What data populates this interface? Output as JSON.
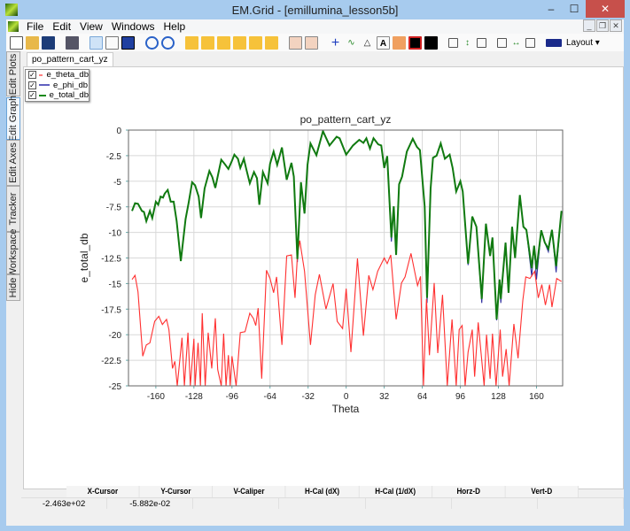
{
  "window": {
    "title": "EM.Grid - [emillumina_lesson5b]",
    "minimize": "–",
    "maximize": "☐",
    "close": "✕"
  },
  "menu": [
    "File",
    "Edit",
    "View",
    "Windows",
    "Help"
  ],
  "toolbar": {
    "icons": [
      "new-file",
      "open-folder",
      "save",
      "print",
      "pointer",
      "pan-hand",
      "zoom-box",
      "zoom-in",
      "zoom-out",
      "stretch-horizontal",
      "fit-horizontal",
      "compress-horizontal",
      "stretch-vertical",
      "fit-vertical",
      "compress-vertical",
      "vertical-split",
      "horizontal-split",
      "crosshair",
      "tracker-cursor",
      "triangle-marker",
      "text-annotation",
      "plot-properties",
      "red-plot",
      "black-plot",
      "checkbox-left",
      "v-caliper",
      "checkbox-right",
      "checkbox-left-2",
      "h-caliper",
      "checkbox-right-2",
      "layout"
    ],
    "layout_label": "Layout ▾"
  },
  "side_tabs": [
    {
      "label": "Edit Plots"
    },
    {
      "label": "Edit Graph",
      "selected": true
    },
    {
      "label": "Edit Axes"
    },
    {
      "label": "Tracker"
    },
    {
      "label": "Workspace"
    },
    {
      "label": "Hide"
    }
  ],
  "doc_tab": "po_pattern_cart_yz",
  "legend": [
    {
      "label": "e_theta_db",
      "color": "#ff8080",
      "checked": true
    },
    {
      "label": "e_phi_db",
      "color": "#6060c0",
      "checked": true
    },
    {
      "label": "e_total_db",
      "color": "#1a8a1a",
      "checked": true
    }
  ],
  "status": {
    "headers": [
      "X-Cursor",
      "Y-Cursor",
      "V-Caliper",
      "H-Cal (dX)",
      "H-Cal (1/dX)",
      "Horz-D",
      "Vert-D"
    ],
    "values": [
      "-2.463e+02",
      "-5.882e-02",
      "",
      "",
      "",
      "",
      ""
    ]
  },
  "chart_data": {
    "type": "line",
    "title": "po_pattern_cart_yz",
    "xlabel": "Theta",
    "ylabel": "e_total_db",
    "xlim": [
      -183,
      182
    ],
    "ylim": [
      -25,
      0
    ],
    "xticks": [
      -160,
      -128,
      -96,
      -64,
      -32,
      0,
      32,
      64,
      96,
      128,
      160
    ],
    "yticks": [
      0,
      -2.5,
      -5,
      -7.5,
      -10,
      -12.5,
      -15,
      -17.5,
      -20,
      -22.5,
      -25
    ],
    "grid": true,
    "series": [
      {
        "name": "e_theta_db",
        "color": "#ff3030",
        "points": [
          [
            -180,
            -14.6
          ],
          [
            -177.5,
            -14.2
          ],
          [
            -175,
            -15.8
          ],
          [
            -171,
            -22.1
          ],
          [
            -168,
            -21
          ],
          [
            -165,
            -20.8
          ],
          [
            -161,
            -18.7
          ],
          [
            -157.5,
            -18.2
          ],
          [
            -154.5,
            -19
          ],
          [
            -151,
            -18.5
          ],
          [
            -149,
            -19.5
          ],
          [
            -146,
            -23.3
          ],
          [
            -144,
            -22.6
          ],
          [
            -142,
            -25
          ],
          [
            -138,
            -20.3
          ],
          [
            -136,
            -25
          ],
          [
            -133,
            -19.8
          ],
          [
            -131,
            -25
          ],
          [
            -128,
            -20.4
          ],
          [
            -127,
            -25
          ],
          [
            -124.5,
            -20.8
          ],
          [
            -122.5,
            -25
          ],
          [
            -121,
            -17.9
          ],
          [
            -118.5,
            -25
          ],
          [
            -116,
            -19.8
          ],
          [
            -113,
            -23.3
          ],
          [
            -110,
            -18.4
          ],
          [
            -108,
            -23.4
          ],
          [
            -105,
            -25
          ],
          [
            -103,
            -19.9
          ],
          [
            -101,
            -25
          ],
          [
            -99,
            -22
          ],
          [
            -97.5,
            -25
          ],
          [
            -96,
            -22.1
          ],
          [
            -92.5,
            -25
          ],
          [
            -89,
            -19.8
          ],
          [
            -85,
            -19.7
          ],
          [
            -81,
            -17.9
          ],
          [
            -78,
            -18.4
          ],
          [
            -76,
            -19.1
          ],
          [
            -74,
            -17.4
          ],
          [
            -71,
            -24.3
          ],
          [
            -67,
            -13.7
          ],
          [
            -64,
            -14.5
          ],
          [
            -61,
            -15.9
          ],
          [
            -58.5,
            -14.35
          ],
          [
            -54,
            -21
          ],
          [
            -50,
            -12.3
          ],
          [
            -46,
            -12.2
          ],
          [
            -43,
            -16.4
          ],
          [
            -41,
            -12.3
          ],
          [
            -39,
            -10.8
          ],
          [
            -35,
            -13.8
          ],
          [
            -30,
            -21
          ],
          [
            -26,
            -16.1
          ],
          [
            -22.5,
            -14.1
          ],
          [
            -17,
            -17.5
          ],
          [
            -11,
            -15
          ],
          [
            -7.5,
            -18.7
          ],
          [
            -3,
            -19.4
          ],
          [
            0,
            -15.5
          ],
          [
            4,
            -21.7
          ],
          [
            9.5,
            -12.55
          ],
          [
            14.5,
            -20.1
          ],
          [
            19,
            -14.2
          ],
          [
            22.5,
            -15.6
          ],
          [
            26.5,
            -13.8
          ],
          [
            32,
            -12.5
          ],
          [
            34.5,
            -13.05
          ],
          [
            37.5,
            -12.2
          ],
          [
            42,
            -18.5
          ],
          [
            46.5,
            -14.95
          ],
          [
            49.5,
            -14.35
          ],
          [
            54.5,
            -12.05
          ],
          [
            60,
            -15.2
          ],
          [
            62.5,
            -14.3
          ],
          [
            65,
            -25
          ],
          [
            67.5,
            -16.5
          ],
          [
            70,
            -22
          ],
          [
            74,
            -14.95
          ],
          [
            77,
            -21.8
          ],
          [
            81,
            -16.1
          ],
          [
            85,
            -25
          ],
          [
            89,
            -18.5
          ],
          [
            92.5,
            -25
          ],
          [
            95,
            -19.5
          ],
          [
            97.5,
            -19.1
          ],
          [
            100,
            -25
          ],
          [
            102.5,
            -21.7
          ],
          [
            106,
            -19.5
          ],
          [
            108,
            -24.1
          ],
          [
            111,
            -18.8
          ],
          [
            116,
            -25
          ],
          [
            118,
            -20
          ],
          [
            121,
            -24.3
          ],
          [
            123,
            -19.9
          ],
          [
            126,
            -25
          ],
          [
            129.5,
            -19.5
          ],
          [
            131.5,
            -24.1
          ],
          [
            134.5,
            -21.4
          ],
          [
            137,
            -25
          ],
          [
            141,
            -18.95
          ],
          [
            144.5,
            -22.3
          ],
          [
            148.5,
            -16.65
          ],
          [
            151,
            -14.35
          ],
          [
            154.5,
            -14.5
          ],
          [
            158.5,
            -13.8
          ],
          [
            161.5,
            -16.4
          ],
          [
            164.5,
            -15.1
          ],
          [
            167.5,
            -17.1
          ],
          [
            171,
            -15.1
          ],
          [
            173,
            -17.3
          ],
          [
            177,
            -14.5
          ],
          [
            181,
            -14.8
          ]
        ]
      },
      {
        "name": "e_phi_db",
        "color": "#3030a0",
        "points": [
          [
            -180,
            -7.9
          ],
          [
            -41,
            -12.9
          ],
          [
            38,
            -10.9
          ],
          [
            68,
            -16.9
          ],
          [
            102.5,
            -13.2
          ],
          [
            114,
            -16.9
          ],
          [
            126.5,
            -18.6
          ],
          [
            130,
            -16.9
          ],
          [
            156,
            -14.3
          ],
          [
            160,
            -14.6
          ],
          [
            170,
            -11.9
          ],
          [
            176.5,
            -13.9
          ],
          [
            181,
            -7.9
          ]
        ]
      },
      {
        "name": "e_total_db",
        "color": "#107a10",
        "points": [
          [
            -180,
            -7.9
          ],
          [
            -177.5,
            -7.15
          ],
          [
            -175,
            -7.2
          ],
          [
            -171.7,
            -7.9
          ],
          [
            -170,
            -8
          ],
          [
            -168,
            -8.9
          ],
          [
            -165,
            -7.9
          ],
          [
            -163,
            -8.6
          ],
          [
            -160,
            -7
          ],
          [
            -158,
            -7.3
          ],
          [
            -156,
            -6.5
          ],
          [
            -154,
            -6.6
          ],
          [
            -152.5,
            -6.2
          ],
          [
            -150,
            -5.85
          ],
          [
            -147.5,
            -7
          ],
          [
            -145,
            -7
          ],
          [
            -142.5,
            -8.9
          ],
          [
            -139,
            -12.8
          ],
          [
            -135,
            -8.7
          ],
          [
            -132.5,
            -7.15
          ],
          [
            -129.5,
            -5.1
          ],
          [
            -127,
            -5.4
          ],
          [
            -124,
            -6.5
          ],
          [
            -122,
            -8.6
          ],
          [
            -119,
            -5.7
          ],
          [
            -115,
            -4
          ],
          [
            -112.5,
            -4.6
          ],
          [
            -110,
            -5.65
          ],
          [
            -107.5,
            -4.25
          ],
          [
            -105,
            -2.9
          ],
          [
            -102.5,
            -3.25
          ],
          [
            -99,
            -3.8
          ],
          [
            -96,
            -3
          ],
          [
            -94,
            -2.4
          ],
          [
            -91,
            -2.8
          ],
          [
            -89,
            -3.7
          ],
          [
            -86,
            -2.8
          ],
          [
            -84,
            -3.8
          ],
          [
            -81,
            -5.2
          ],
          [
            -77.5,
            -4.1
          ],
          [
            -75,
            -4.7
          ],
          [
            -73,
            -7.3
          ],
          [
            -70,
            -4.1
          ],
          [
            -66,
            -5.2
          ],
          [
            -64,
            -3.3
          ],
          [
            -61,
            -2.1
          ],
          [
            -58,
            -3.4
          ],
          [
            -54,
            -1.7
          ],
          [
            -50,
            -4.85
          ],
          [
            -46,
            -3.2
          ],
          [
            -44,
            -4.55
          ],
          [
            -41,
            -12.6
          ],
          [
            -38,
            -5.1
          ],
          [
            -35,
            -8.15
          ],
          [
            -32.5,
            -3.4
          ],
          [
            -30,
            -1.3
          ],
          [
            -25,
            -2.45
          ],
          [
            -19.5,
            -0.1
          ],
          [
            -14,
            -1.5
          ],
          [
            -8,
            -0.65
          ],
          [
            -5.5,
            -0.8
          ],
          [
            0,
            -2.4
          ],
          [
            5.75,
            -1.5
          ],
          [
            11,
            -0.95
          ],
          [
            14.5,
            -1.25
          ],
          [
            17,
            -0.8
          ],
          [
            20,
            -1.8
          ],
          [
            23,
            -0.8
          ],
          [
            27,
            -1.4
          ],
          [
            29.5,
            -1.5
          ],
          [
            32,
            -3.7
          ],
          [
            34.5,
            -2.55
          ],
          [
            38,
            -10.5
          ],
          [
            40,
            -7.45
          ],
          [
            42,
            -12.2
          ],
          [
            44.5,
            -5.3
          ],
          [
            47,
            -4.55
          ],
          [
            51,
            -2.1
          ],
          [
            56,
            -0.85
          ],
          [
            59.5,
            -1.65
          ],
          [
            62,
            -1.95
          ],
          [
            66,
            -7.45
          ],
          [
            68,
            -16.4
          ],
          [
            71,
            -5.7
          ],
          [
            73,
            -2.7
          ],
          [
            76,
            -2.5
          ],
          [
            79.5,
            -1.3
          ],
          [
            83,
            -2.8
          ],
          [
            87,
            -2.4
          ],
          [
            89.5,
            -3.7
          ],
          [
            92.5,
            -6
          ],
          [
            96,
            -5
          ],
          [
            98,
            -6
          ],
          [
            102.5,
            -13.05
          ],
          [
            106,
            -8.45
          ],
          [
            109.5,
            -9.45
          ],
          [
            114,
            -16.5
          ],
          [
            117.5,
            -9.15
          ],
          [
            121,
            -12.3
          ],
          [
            123,
            -10.5
          ],
          [
            126.5,
            -18.5
          ],
          [
            129,
            -14.6
          ],
          [
            130,
            -16.5
          ],
          [
            134,
            -11
          ],
          [
            136.5,
            -15.9
          ],
          [
            139.5,
            -9.45
          ],
          [
            142,
            -12.5
          ],
          [
            146,
            -6.35
          ],
          [
            149,
            -9.45
          ],
          [
            151.5,
            -9.75
          ],
          [
            156,
            -13.5
          ],
          [
            158,
            -11.3
          ],
          [
            160,
            -13.6
          ],
          [
            164,
            -9.8
          ],
          [
            167,
            -11
          ],
          [
            170,
            -11.6
          ],
          [
            173,
            -9.75
          ],
          [
            176.5,
            -13.3
          ],
          [
            181,
            -7.9
          ]
        ]
      }
    ]
  }
}
